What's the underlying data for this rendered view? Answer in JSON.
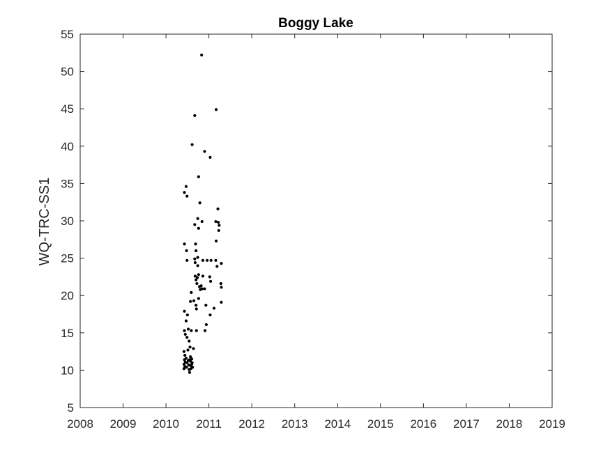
{
  "chart_data": {
    "type": "scatter",
    "title": "Boggy Lake",
    "xlabel": "",
    "ylabel": "WQ-TRC-SS1",
    "xlim": [
      2008,
      2019
    ],
    "ylim": [
      5,
      55
    ],
    "xticks": [
      "2008",
      "2009",
      "2010",
      "2011",
      "2012",
      "2013",
      "2014",
      "2015",
      "2016",
      "2017",
      "2018",
      "2019"
    ],
    "yticks": [
      "5",
      "10",
      "15",
      "20",
      "25",
      "30",
      "35",
      "40",
      "45",
      "50",
      "55"
    ],
    "grid": false,
    "marker_color": "#000000",
    "axis_color": "#262626",
    "points": [
      {
        "x": 2010.43,
        "y": 33.8
      },
      {
        "x": 2010.47,
        "y": 34.6
      },
      {
        "x": 2010.49,
        "y": 33.3
      },
      {
        "x": 2010.43,
        "y": 26.9
      },
      {
        "x": 2010.48,
        "y": 26.0
      },
      {
        "x": 2010.49,
        "y": 24.7
      },
      {
        "x": 2010.43,
        "y": 17.9
      },
      {
        "x": 2010.47,
        "y": 16.6
      },
      {
        "x": 2010.5,
        "y": 17.4
      },
      {
        "x": 2010.43,
        "y": 15.3
      },
      {
        "x": 2010.45,
        "y": 14.8
      },
      {
        "x": 2010.49,
        "y": 14.4
      },
      {
        "x": 2010.52,
        "y": 15.5
      },
      {
        "x": 2010.54,
        "y": 13.9
      },
      {
        "x": 2010.56,
        "y": 13.1
      },
      {
        "x": 2010.59,
        "y": 15.3
      },
      {
        "x": 2010.64,
        "y": 12.9
      },
      {
        "x": 2010.71,
        "y": 15.3
      },
      {
        "x": 2010.42,
        "y": 12.5
      },
      {
        "x": 2010.44,
        "y": 12.0
      },
      {
        "x": 2010.43,
        "y": 11.4
      },
      {
        "x": 2010.45,
        "y": 11.1
      },
      {
        "x": 2010.42,
        "y": 10.8
      },
      {
        "x": 2010.44,
        "y": 10.5
      },
      {
        "x": 2010.42,
        "y": 10.2
      },
      {
        "x": 2010.47,
        "y": 11.6
      },
      {
        "x": 2010.49,
        "y": 11.0
      },
      {
        "x": 2010.48,
        "y": 10.4
      },
      {
        "x": 2010.51,
        "y": 12.7
      },
      {
        "x": 2010.52,
        "y": 11.3
      },
      {
        "x": 2010.53,
        "y": 10.7
      },
      {
        "x": 2010.54,
        "y": 10.1
      },
      {
        "x": 2010.55,
        "y": 9.7
      },
      {
        "x": 2010.57,
        "y": 11.8
      },
      {
        "x": 2010.57,
        "y": 11.2
      },
      {
        "x": 2010.58,
        "y": 10.6
      },
      {
        "x": 2010.58,
        "y": 10.2
      },
      {
        "x": 2010.6,
        "y": 11.5
      },
      {
        "x": 2010.61,
        "y": 11.0
      },
      {
        "x": 2010.62,
        "y": 10.4
      },
      {
        "x": 2010.6,
        "y": 10.8
      },
      {
        "x": 2010.55,
        "y": 11.4
      },
      {
        "x": 2010.57,
        "y": 19.2
      },
      {
        "x": 2010.59,
        "y": 20.4
      },
      {
        "x": 2010.65,
        "y": 19.3
      },
      {
        "x": 2010.7,
        "y": 18.7
      },
      {
        "x": 2010.71,
        "y": 18.2
      },
      {
        "x": 2010.76,
        "y": 19.6
      },
      {
        "x": 2010.61,
        "y": 40.2
      },
      {
        "x": 2010.67,
        "y": 44.1
      },
      {
        "x": 2010.76,
        "y": 35.9
      },
      {
        "x": 2010.79,
        "y": 32.4
      },
      {
        "x": 2010.83,
        "y": 52.2
      },
      {
        "x": 2010.9,
        "y": 39.3
      },
      {
        "x": 2011.03,
        "y": 38.5
      },
      {
        "x": 2011.17,
        "y": 44.9
      },
      {
        "x": 2010.67,
        "y": 29.5
      },
      {
        "x": 2010.74,
        "y": 30.3
      },
      {
        "x": 2010.76,
        "y": 29.0
      },
      {
        "x": 2010.84,
        "y": 29.9
      },
      {
        "x": 2010.69,
        "y": 26.9
      },
      {
        "x": 2010.7,
        "y": 26.0
      },
      {
        "x": 2010.67,
        "y": 24.9
      },
      {
        "x": 2010.68,
        "y": 24.4
      },
      {
        "x": 2010.74,
        "y": 25.1
      },
      {
        "x": 2010.74,
        "y": 24.0
      },
      {
        "x": 2010.86,
        "y": 24.7
      },
      {
        "x": 2010.96,
        "y": 24.7
      },
      {
        "x": 2011.05,
        "y": 24.7
      },
      {
        "x": 2011.16,
        "y": 24.7
      },
      {
        "x": 2011.19,
        "y": 23.9
      },
      {
        "x": 2010.68,
        "y": 22.6
      },
      {
        "x": 2010.7,
        "y": 22.1
      },
      {
        "x": 2010.73,
        "y": 22.4
      },
      {
        "x": 2010.72,
        "y": 21.6
      },
      {
        "x": 2010.76,
        "y": 22.8
      },
      {
        "x": 2010.78,
        "y": 21.2
      },
      {
        "x": 2010.8,
        "y": 20.8
      },
      {
        "x": 2010.82,
        "y": 21.3
      },
      {
        "x": 2010.84,
        "y": 20.9
      },
      {
        "x": 2010.86,
        "y": 22.6
      },
      {
        "x": 2010.9,
        "y": 20.9
      },
      {
        "x": 2010.93,
        "y": 18.7
      },
      {
        "x": 2010.94,
        "y": 16.1
      },
      {
        "x": 2010.91,
        "y": 15.3
      },
      {
        "x": 2011.03,
        "y": 17.4
      },
      {
        "x": 2011.02,
        "y": 22.5
      },
      {
        "x": 2011.04,
        "y": 21.9
      },
      {
        "x": 2011.12,
        "y": 18.3
      },
      {
        "x": 2011.16,
        "y": 29.9
      },
      {
        "x": 2011.17,
        "y": 27.3
      },
      {
        "x": 2011.22,
        "y": 29.8
      },
      {
        "x": 2011.23,
        "y": 28.7
      },
      {
        "x": 2011.24,
        "y": 29.4
      },
      {
        "x": 2011.21,
        "y": 31.6
      },
      {
        "x": 2011.29,
        "y": 24.3
      },
      {
        "x": 2011.28,
        "y": 21.6
      },
      {
        "x": 2011.29,
        "y": 21.1
      },
      {
        "x": 2011.29,
        "y": 19.1
      }
    ]
  }
}
